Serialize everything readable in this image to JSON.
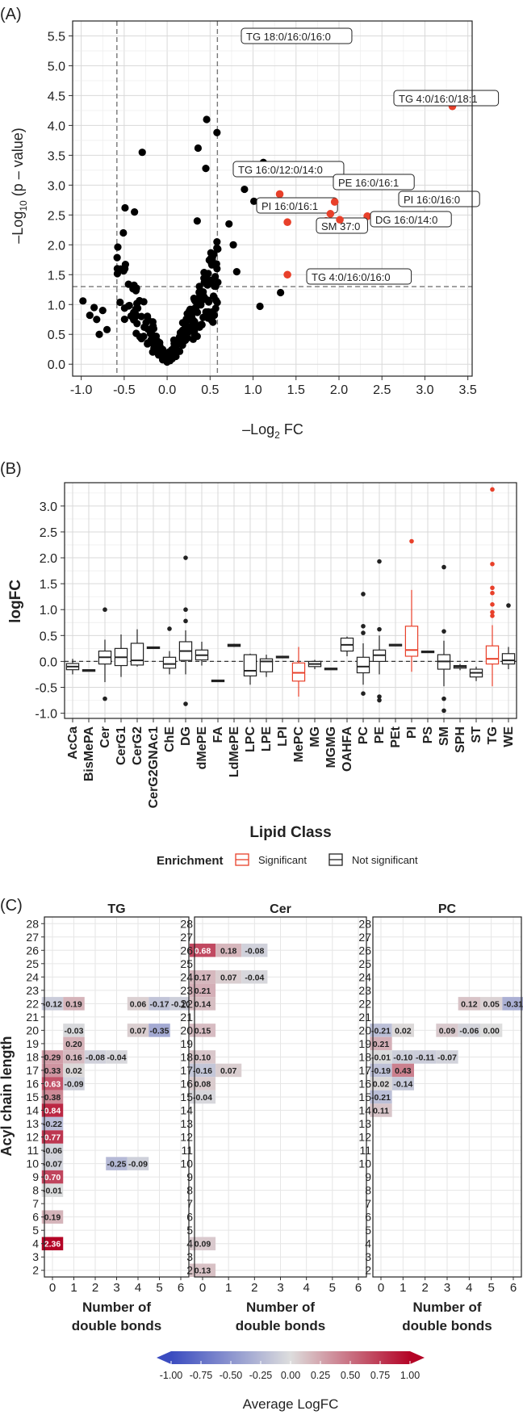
{
  "colors": {
    "sig": "#e8402a",
    "point": "#000000",
    "grid": "#d9d9d9",
    "dash": "#777777",
    "low": "#3b4cc0",
    "mid": "#dddddd",
    "high": "#b40426"
  },
  "chart_data": [
    {
      "panel": "(A)",
      "type": "scatter",
      "xlabel_pre": "–Log",
      "xlabel_sub": "2",
      "xlabel_post": " FC",
      "ylabel_pre": "–Log",
      "ylabel_sub": "10",
      "ylabel_post": " (p – value)",
      "xlim": [
        -1.1,
        3.55
      ],
      "ylim": [
        -0.2,
        5.75
      ],
      "xticks": [
        -1.0,
        -0.5,
        0.0,
        0.5,
        1.0,
        1.5,
        2.0,
        2.5,
        3.0,
        3.5
      ],
      "xtick_labels": [
        "-1.0",
        "-0.5",
        "0.0",
        "0.5",
        "1.0",
        "1.5",
        "2.0",
        "2.5",
        "3.0",
        "3.5"
      ],
      "yticks": [
        0,
        0.5,
        1,
        1.5,
        2,
        2.5,
        3,
        3.5,
        4,
        4.5,
        5,
        5.5
      ],
      "ytick_labels": [
        "0.0",
        "0.5",
        "1.0",
        "1.5",
        "2.0",
        "2.5",
        "3.0",
        "3.5",
        "4.0",
        "4.5",
        "5.0",
        "5.5"
      ],
      "vlines": [
        -0.585,
        0.585
      ],
      "hline": 1.3,
      "significant": [
        {
          "x": 1.33,
          "y": 5.53,
          "label": "TG 18:0/16:0/16:0"
        },
        {
          "x": 3.32,
          "y": 4.32,
          "label": "TG 4:0/16:0/18:1"
        },
        {
          "x": 1.31,
          "y": 2.85,
          "label": "TG 16:0/12:0/14:0"
        },
        {
          "x": 1.4,
          "y": 2.38,
          "label": "PI 16:0/16:1"
        },
        {
          "x": 1.95,
          "y": 2.72,
          "label": "PE 16:0/16:1"
        },
        {
          "x": 2.33,
          "y": 2.48,
          "label": "PI 16:0/16:0"
        },
        {
          "x": 1.9,
          "y": 2.52,
          "label": ""
        },
        {
          "x": 1.85,
          "y": 2.4,
          "label": "SM 37:0"
        },
        {
          "x": 2.01,
          "y": 2.42,
          "label": "DG 16:0/14:0"
        },
        {
          "x": 1.4,
          "y": 1.5,
          "label": "TG 4:0/16:0/16:0"
        }
      ],
      "notable_points": [
        [
          0.46,
          4.1
        ],
        [
          0.58,
          3.88
        ],
        [
          0.36,
          3.62
        ],
        [
          -0.29,
          3.55
        ],
        [
          1.12,
          3.38
        ],
        [
          0.45,
          3.28
        ],
        [
          0.9,
          2.93
        ],
        [
          1.01,
          2.73
        ],
        [
          -0.49,
          2.62
        ],
        [
          -0.38,
          2.55
        ],
        [
          0.35,
          2.4
        ],
        [
          0.72,
          2.35
        ],
        [
          -0.51,
          2.2
        ],
        [
          0.58,
          2.05
        ],
        [
          0.77,
          2.0
        ],
        [
          0.59,
          1.93
        ],
        [
          0.58,
          1.6
        ],
        [
          -0.58,
          1.6
        ],
        [
          0.81,
          1.55
        ],
        [
          1.08,
          0.97
        ],
        [
          1.32,
          1.2
        ],
        [
          -0.98,
          1.06
        ],
        [
          -0.9,
          0.82
        ],
        [
          -0.85,
          0.95
        ],
        [
          -0.82,
          0.75
        ],
        [
          -0.79,
          0.5
        ],
        [
          -0.75,
          0.9
        ],
        [
          -0.7,
          0.58
        ]
      ]
    },
    {
      "panel": "(B)",
      "type": "box",
      "ylabel": "logFC",
      "xlabel": "Lipid Class",
      "ylim": [
        -1.1,
        3.45
      ],
      "yticks": [
        -1.0,
        -0.5,
        0.0,
        0.5,
        1.0,
        1.5,
        2.0,
        2.5,
        3.0
      ],
      "ytick_labels": [
        "-1.0",
        "-0.5",
        "0.0",
        "0.5",
        "1.0",
        "1.5",
        "2.0",
        "2.5",
        "3.0"
      ],
      "legend_title": "Enrichment",
      "legend_items": [
        "Significant",
        "Not significant"
      ],
      "classes": [
        {
          "name": "AcCa",
          "q1": -0.16,
          "med": -0.1,
          "q3": -0.04,
          "lo": -0.25,
          "hi": 0.05,
          "out": [],
          "sig": false
        },
        {
          "name": "BisMePA",
          "q1": -0.18,
          "med": -0.17,
          "q3": -0.16,
          "lo": -0.18,
          "hi": -0.16,
          "out": [],
          "sig": false
        },
        {
          "name": "Cer",
          "q1": -0.05,
          "med": 0.08,
          "q3": 0.2,
          "lo": -0.4,
          "hi": 0.42,
          "out": [
            1.0,
            -0.72
          ],
          "sig": false
        },
        {
          "name": "CerG1",
          "q1": -0.08,
          "med": 0.08,
          "q3": 0.25,
          "lo": -0.3,
          "hi": 0.52,
          "out": [],
          "sig": false
        },
        {
          "name": "CerG2",
          "q1": -0.07,
          "med": 0.02,
          "q3": 0.35,
          "lo": -0.1,
          "hi": 0.62,
          "out": [],
          "sig": false
        },
        {
          "name": "CerG2GNAc1",
          "q1": 0.26,
          "med": 0.27,
          "q3": 0.28,
          "lo": 0.26,
          "hi": 0.28,
          "out": [],
          "sig": false
        },
        {
          "name": "ChE",
          "q1": -0.13,
          "med": -0.05,
          "q3": 0.08,
          "lo": -0.25,
          "hi": 0.2,
          "out": [
            0.63
          ],
          "sig": false
        },
        {
          "name": "DG",
          "q1": 0.02,
          "med": 0.2,
          "q3": 0.38,
          "lo": -0.25,
          "hi": 0.6,
          "out": [
            2.0,
            1.0,
            0.78,
            -0.82
          ],
          "sig": false
        },
        {
          "name": "dMePE",
          "q1": 0.03,
          "med": 0.12,
          "q3": 0.22,
          "lo": -0.08,
          "hi": 0.38,
          "out": [],
          "sig": false
        },
        {
          "name": "FA",
          "q1": -0.38,
          "med": -0.37,
          "q3": -0.36,
          "lo": -0.38,
          "hi": -0.36,
          "out": [],
          "sig": false
        },
        {
          "name": "LdMePE",
          "q1": 0.29,
          "med": 0.31,
          "q3": 0.33,
          "lo": 0.28,
          "hi": 0.34,
          "out": [],
          "sig": false
        },
        {
          "name": "LPC",
          "q1": -0.28,
          "med": -0.18,
          "q3": 0.13,
          "lo": -0.45,
          "hi": 0.15,
          "out": [],
          "sig": false
        },
        {
          "name": "LPE",
          "q1": -0.2,
          "med": 0.0,
          "q3": 0.05,
          "lo": -0.3,
          "hi": 0.13,
          "out": [],
          "sig": false
        },
        {
          "name": "LPI",
          "q1": 0.08,
          "med": 0.09,
          "q3": 0.1,
          "lo": 0.08,
          "hi": 0.1,
          "out": [],
          "sig": false
        },
        {
          "name": "MePC",
          "q1": -0.38,
          "med": -0.22,
          "q3": -0.03,
          "lo": -0.68,
          "hi": 0.28,
          "out": [],
          "sig": true
        },
        {
          "name": "MG",
          "q1": -0.1,
          "med": -0.05,
          "q3": 0.0,
          "lo": -0.15,
          "hi": 0.03,
          "out": [],
          "sig": false
        },
        {
          "name": "MGMG",
          "q1": -0.15,
          "med": -0.14,
          "q3": -0.13,
          "lo": -0.15,
          "hi": -0.13,
          "out": [],
          "sig": false
        },
        {
          "name": "OAHFA",
          "q1": 0.2,
          "med": 0.32,
          "q3": 0.45,
          "lo": 0.1,
          "hi": 0.48,
          "out": [],
          "sig": false
        },
        {
          "name": "PC",
          "q1": -0.22,
          "med": -0.1,
          "q3": 0.08,
          "lo": -0.45,
          "hi": 0.35,
          "out": [
            1.3,
            0.68,
            0.55,
            -0.62
          ],
          "sig": false
        },
        {
          "name": "PE",
          "q1": 0.0,
          "med": 0.12,
          "q3": 0.22,
          "lo": -0.25,
          "hi": 0.5,
          "out": [
            1.93,
            0.62,
            -0.68,
            -0.75
          ],
          "sig": false
        },
        {
          "name": "PEt",
          "q1": 0.31,
          "med": 0.32,
          "q3": 0.33,
          "lo": 0.31,
          "hi": 0.33,
          "out": [],
          "sig": false
        },
        {
          "name": "PI",
          "q1": 0.1,
          "med": 0.22,
          "q3": 0.68,
          "lo": -0.2,
          "hi": 1.38,
          "out": [
            2.32
          ],
          "sig": true
        },
        {
          "name": "PS",
          "q1": 0.18,
          "med": 0.19,
          "q3": 0.2,
          "lo": 0.18,
          "hi": 0.2,
          "out": [],
          "sig": false
        },
        {
          "name": "SM",
          "q1": -0.15,
          "med": 0.0,
          "q3": 0.13,
          "lo": -0.48,
          "hi": 0.4,
          "out": [
            1.82,
            0.58,
            -0.95,
            -0.72
          ],
          "sig": false
        },
        {
          "name": "SPH",
          "q1": -0.13,
          "med": -0.1,
          "q3": -0.08,
          "lo": -0.17,
          "hi": -0.05,
          "out": [],
          "sig": false
        },
        {
          "name": "ST",
          "q1": -0.3,
          "med": -0.22,
          "q3": -0.15,
          "lo": -0.38,
          "hi": -0.1,
          "out": [],
          "sig": false
        },
        {
          "name": "TG",
          "q1": -0.05,
          "med": 0.05,
          "q3": 0.3,
          "lo": -0.48,
          "hi": 0.7,
          "out": [
            3.32,
            1.88,
            1.42,
            1.32,
            1.1,
            0.95,
            0.88
          ],
          "sig": true
        },
        {
          "name": "WE",
          "q1": -0.05,
          "med": 0.02,
          "q3": 0.15,
          "lo": -0.15,
          "hi": 0.28,
          "out": [
            1.08
          ],
          "sig": false
        }
      ]
    },
    {
      "panel": "(C)",
      "type": "heatmap",
      "ylabel": "Acyl chain length",
      "xlabel_line1": "Number of",
      "xlabel_line2": "double bonds",
      "y_range": [
        2,
        28
      ],
      "x_range": [
        0,
        6
      ],
      "colorbar_title": "Average LogFC",
      "colorbar_ticks": [
        "-1.00",
        "-0.75",
        "-0.50",
        "-0.25",
        "0.00",
        "0.25",
        "0.50",
        "0.75",
        "1.00"
      ],
      "facets": [
        {
          "title": "TG",
          "cells": [
            [
              22,
              0,
              "-0.12"
            ],
            [
              22,
              1,
              "0.19"
            ],
            [
              22,
              4,
              "0.06"
            ],
            [
              22,
              5,
              "-0.17"
            ],
            [
              22,
              6,
              "-0.10"
            ],
            [
              20,
              1,
              "-0.03"
            ],
            [
              20,
              4,
              "0.07"
            ],
            [
              20,
              5,
              "-0.35"
            ],
            [
              19,
              1,
              "0.20"
            ],
            [
              18,
              0,
              "0.29"
            ],
            [
              18,
              1,
              "0.16"
            ],
            [
              18,
              2,
              "-0.08"
            ],
            [
              18,
              3,
              "-0.04"
            ],
            [
              17,
              0,
              "0.33"
            ],
            [
              17,
              1,
              "0.02"
            ],
            [
              16,
              0,
              "0.63"
            ],
            [
              16,
              1,
              "-0.09"
            ],
            [
              15,
              0,
              "0.38"
            ],
            [
              14,
              0,
              "0.84"
            ],
            [
              13,
              0,
              "-0.22"
            ],
            [
              12,
              0,
              "0.77"
            ],
            [
              11,
              0,
              "-0.06"
            ],
            [
              10,
              0,
              "-0.07"
            ],
            [
              10,
              3,
              "-0.25"
            ],
            [
              10,
              4,
              "-0.09"
            ],
            [
              9,
              0,
              "0.70"
            ],
            [
              8,
              0,
              "-0.01"
            ],
            [
              6,
              0,
              "0.19"
            ],
            [
              4,
              0,
              "2.36"
            ]
          ]
        },
        {
          "title": "Cer",
          "cells": [
            [
              26,
              0,
              "0.68"
            ],
            [
              26,
              1,
              "0.18"
            ],
            [
              26,
              2,
              "-0.08"
            ],
            [
              24,
              0,
              "0.17"
            ],
            [
              24,
              1,
              "0.07"
            ],
            [
              24,
              2,
              "-0.04"
            ],
            [
              23,
              0,
              "0.21"
            ],
            [
              22,
              0,
              "0.14"
            ],
            [
              20,
              0,
              "0.15"
            ],
            [
              18,
              0,
              "0.10"
            ],
            [
              17,
              0,
              "-0.16"
            ],
            [
              17,
              1,
              "0.07"
            ],
            [
              16,
              0,
              "0.08"
            ],
            [
              15,
              0,
              "-0.04"
            ],
            [
              4,
              0,
              "0.09"
            ],
            [
              2,
              0,
              "0.13"
            ]
          ]
        },
        {
          "title": "PC",
          "cells": [
            [
              22,
              4,
              "0.12"
            ],
            [
              22,
              5,
              "0.05"
            ],
            [
              22,
              6,
              "-0.31"
            ],
            [
              20,
              0,
              "-0.21"
            ],
            [
              20,
              1,
              "0.02"
            ],
            [
              20,
              3,
              "0.09"
            ],
            [
              20,
              4,
              "-0.06"
            ],
            [
              20,
              5,
              "0.00"
            ],
            [
              19,
              0,
              "0.21"
            ],
            [
              18,
              0,
              "-0.01"
            ],
            [
              18,
              1,
              "-0.10"
            ],
            [
              18,
              2,
              "-0.11"
            ],
            [
              18,
              3,
              "-0.07"
            ],
            [
              17,
              0,
              "-0.19"
            ],
            [
              17,
              1,
              "0.43"
            ],
            [
              16,
              0,
              "0.02"
            ],
            [
              16,
              1,
              "-0.14"
            ],
            [
              15,
              0,
              "-0.21"
            ],
            [
              14,
              0,
              "0.11"
            ]
          ]
        }
      ]
    }
  ]
}
